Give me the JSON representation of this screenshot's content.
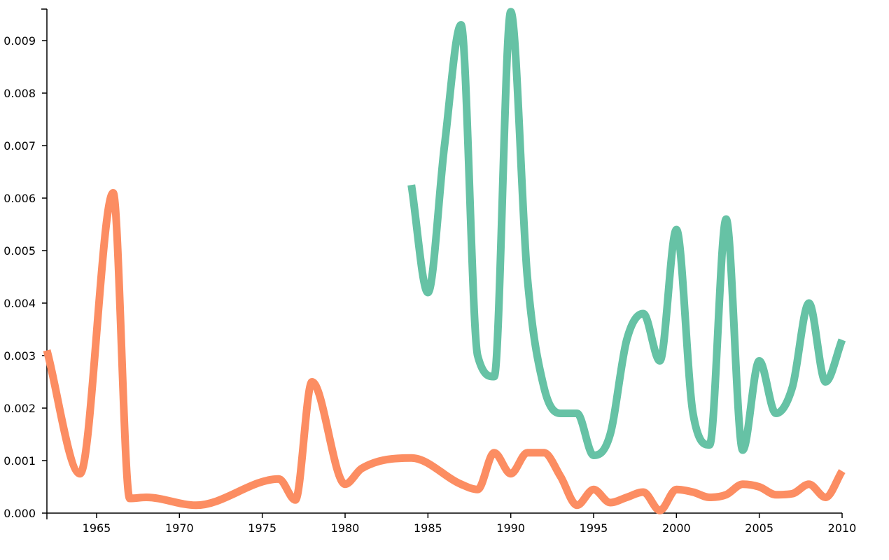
{
  "chart_data": {
    "type": "line",
    "title": "",
    "xlabel": "",
    "ylabel": "",
    "xlim": [
      1962,
      2010
    ],
    "ylim": [
      0,
      0.0096
    ],
    "grid": false,
    "legend": "none",
    "x_ticks": [
      "1965",
      "1970",
      "1975",
      "1980",
      "1985",
      "1990",
      "1995",
      "2000",
      "2005",
      "2010"
    ],
    "y_ticks": [
      "0.000",
      "0.001",
      "0.002",
      "0.003",
      "0.004",
      "0.005",
      "0.006",
      "0.007",
      "0.008",
      "0.009"
    ],
    "series": [
      {
        "color": "#fc8d62",
        "x": [
          1962,
          1964,
          1966,
          1967,
          1968,
          1971,
          1976,
          1977,
          1978,
          1980,
          1981,
          1984,
          1987,
          1988,
          1989,
          1990,
          1991,
          1992,
          1993,
          1994,
          1995,
          1996,
          1997,
          1998,
          1999,
          2000,
          2001,
          2002,
          2003,
          2004,
          2005,
          2006,
          2007,
          2008,
          2009,
          2010
        ],
        "y": [
          0.0031,
          0.00075,
          0.0061,
          0.00028,
          0.0003,
          0.00015,
          0.00065,
          0.00025,
          0.0025,
          0.00055,
          0.00085,
          0.00105,
          0.00055,
          0.00045,
          0.00115,
          0.00075,
          0.00115,
          0.00115,
          0.0007,
          0.00015,
          0.00045,
          0.0002,
          0.0003,
          0.0004,
          5e-05,
          0.00045,
          0.0004,
          0.0003,
          0.00035,
          0.00055,
          0.0005,
          0.00035,
          0.00037,
          0.00055,
          0.0003,
          0.0008
        ]
      },
      {
        "color": "#66c2a5",
        "x": [
          1984,
          1985,
          1986,
          1987,
          1988,
          1989,
          1990,
          1991,
          1992,
          1993,
          1994,
          1995,
          1996,
          1997,
          1998,
          1999,
          2000,
          2001,
          2002,
          2003,
          2004,
          2005,
          2006,
          2007,
          2008,
          2009,
          2010
        ],
        "y": [
          0.00625,
          0.0042,
          0.007,
          0.0093,
          0.003,
          0.0026,
          0.00955,
          0.0045,
          0.0024,
          0.0019,
          0.0019,
          0.0011,
          0.0015,
          0.0033,
          0.0038,
          0.0029,
          0.0054,
          0.0019,
          0.0013,
          0.0056,
          0.0012,
          0.0029,
          0.0019,
          0.0024,
          0.004,
          0.0025,
          0.0033
        ]
      }
    ]
  }
}
